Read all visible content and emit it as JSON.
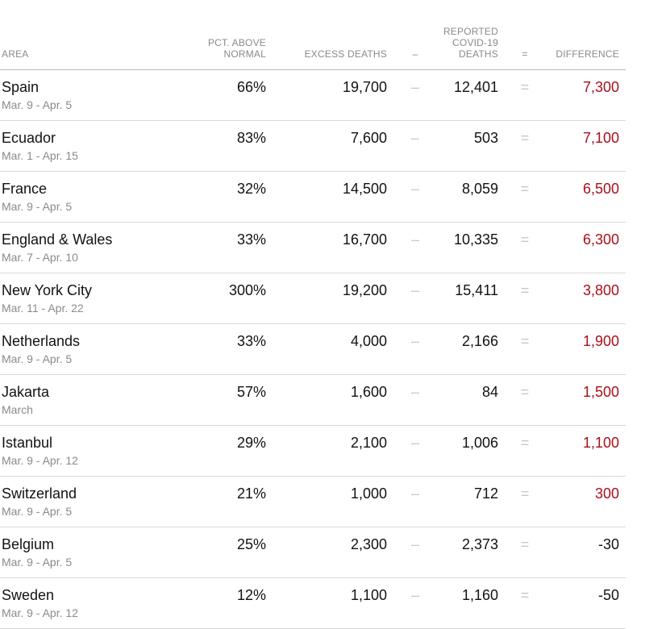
{
  "headers": {
    "area": "AREA",
    "pct_above_normal_line1": "PCT. ABOVE",
    "pct_above_normal_line2": "NORMAL",
    "excess_deaths": "EXCESS DEATHS",
    "minus_symbol": "–",
    "reported_line1": "REPORTED",
    "reported_line2": "COVID-19",
    "reported_line3": "DEATHS",
    "equals_symbol": "=",
    "difference": "DIFFERENCE"
  },
  "operators": {
    "minus": "–",
    "equals": "="
  },
  "colors": {
    "positive_difference": "#a80f1c",
    "negative_difference": "#121212",
    "header_text": "#8a8a8a"
  },
  "rows": [
    {
      "area": "Spain",
      "dates": "Mar. 9 - Apr. 5",
      "pct": "66%",
      "excess": "19,700",
      "reported": "12,401",
      "difference": "7,300"
    },
    {
      "area": "Ecuador",
      "dates": "Mar. 1 - Apr. 15",
      "pct": "83%",
      "excess": "7,600",
      "reported": "503",
      "difference": "7,100"
    },
    {
      "area": "France",
      "dates": "Mar. 9 - Apr. 5",
      "pct": "32%",
      "excess": "14,500",
      "reported": "8,059",
      "difference": "6,500"
    },
    {
      "area": "England & Wales",
      "dates": "Mar. 7 - Apr. 10",
      "pct": "33%",
      "excess": "16,700",
      "reported": "10,335",
      "difference": "6,300"
    },
    {
      "area": "New York City",
      "dates": "Mar. 11 - Apr. 22",
      "pct": "300%",
      "excess": "19,200",
      "reported": "15,411",
      "difference": "3,800"
    },
    {
      "area": "Netherlands",
      "dates": "Mar. 9 - Apr. 5",
      "pct": "33%",
      "excess": "4,000",
      "reported": "2,166",
      "difference": "1,900"
    },
    {
      "area": "Jakarta",
      "dates": "March",
      "pct": "57%",
      "excess": "1,600",
      "reported": "84",
      "difference": "1,500"
    },
    {
      "area": "Istanbul",
      "dates": "Mar. 9 - Apr. 12",
      "pct": "29%",
      "excess": "2,100",
      "reported": "1,006",
      "difference": "1,100"
    },
    {
      "area": "Switzerland",
      "dates": "Mar. 9 - Apr. 5",
      "pct": "21%",
      "excess": "1,000",
      "reported": "712",
      "difference": "300"
    },
    {
      "area": "Belgium",
      "dates": "Mar. 9 - Apr. 5",
      "pct": "25%",
      "excess": "2,300",
      "reported": "2,373",
      "difference": "-30"
    },
    {
      "area": "Sweden",
      "dates": "Mar. 9 - Apr. 12",
      "pct": "12%",
      "excess": "1,100",
      "reported": "1,160",
      "difference": "-50"
    }
  ]
}
